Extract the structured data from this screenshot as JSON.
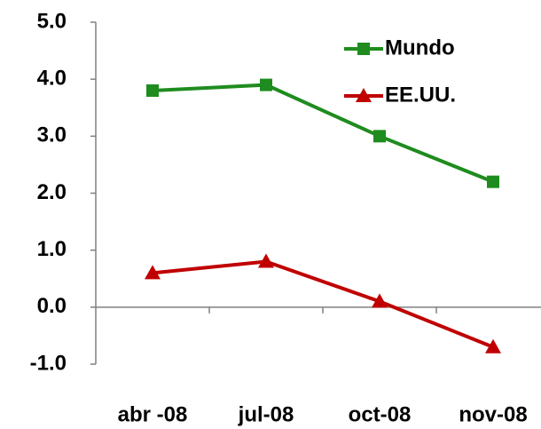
{
  "chart_data": {
    "type": "line",
    "categories": [
      "abr -08",
      "jul-08",
      "oct-08",
      "nov-08"
    ],
    "series": [
      {
        "name": "Mundo",
        "color": "#1e8c1e",
        "marker": "square",
        "values": [
          3.8,
          3.9,
          3.0,
          2.2
        ]
      },
      {
        "name": "EE.UU.",
        "color": "#c00000",
        "marker": "triangle",
        "values": [
          0.6,
          0.8,
          0.1,
          -0.7
        ]
      }
    ],
    "ylim": [
      -1,
      5
    ],
    "yticks": [
      {
        "value": -1,
        "label": "-1.0"
      },
      {
        "value": 0,
        "label": "0.0"
      },
      {
        "value": 1,
        "label": "1.0"
      },
      {
        "value": 2,
        "label": "2.0"
      },
      {
        "value": 3,
        "label": "3.0"
      },
      {
        "value": 4,
        "label": "4.0"
      },
      {
        "value": 5,
        "label": "5.0"
      }
    ],
    "legend": "upper right"
  }
}
